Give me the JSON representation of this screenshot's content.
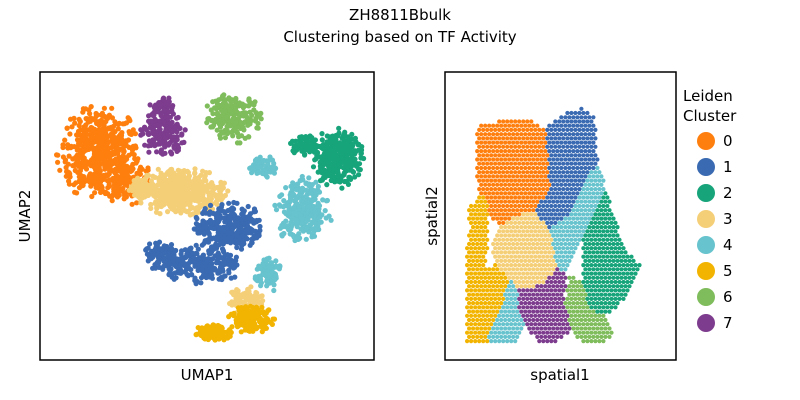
{
  "figure": {
    "title_line1": "ZH8811Bbulk",
    "title_line2": "Clustering based on TF Activity"
  },
  "legend": {
    "title_line1": "Leiden",
    "title_line2": "Cluster",
    "items": [
      {
        "label": "0",
        "color": "#ff7f0e"
      },
      {
        "label": "1",
        "color": "#3a6ab2"
      },
      {
        "label": "2",
        "color": "#17a47a"
      },
      {
        "label": "3",
        "color": "#f5cf78"
      },
      {
        "label": "4",
        "color": "#67c3cd"
      },
      {
        "label": "5",
        "color": "#f2b400"
      },
      {
        "label": "6",
        "color": "#7fbc5b"
      },
      {
        "label": "7",
        "color": "#7d3c8e"
      }
    ]
  },
  "chart_data": [
    {
      "type": "scatter",
      "xlabel": "UMAP1",
      "ylabel": "UMAP2",
      "ticks": "none",
      "grid": false,
      "xlim": [
        0,
        100
      ],
      "ylim": [
        0,
        100
      ],
      "clusters": [
        {
          "cluster": "0",
          "shape": "blob",
          "cx": 16,
          "cy": 73,
          "rx": 13,
          "ry": 17,
          "n": 520
        },
        {
          "cluster": "0",
          "shape": "blob",
          "cx": 25,
          "cy": 63,
          "rx": 8,
          "ry": 9,
          "n": 140
        },
        {
          "cluster": "7",
          "shape": "blob",
          "cx": 36,
          "cy": 80,
          "rx": 7,
          "ry": 9,
          "n": 170
        },
        {
          "cluster": "7",
          "shape": "blob",
          "cx": 36,
          "cy": 90,
          "rx": 4,
          "ry": 4,
          "n": 50
        },
        {
          "cluster": "6",
          "shape": "blob",
          "cx": 58,
          "cy": 86,
          "rx": 9,
          "ry": 9,
          "n": 200
        },
        {
          "cluster": "2",
          "shape": "blob",
          "cx": 91,
          "cy": 71,
          "rx": 8,
          "ry": 11,
          "n": 300
        },
        {
          "cluster": "2",
          "shape": "blob",
          "cx": 81,
          "cy": 76,
          "rx": 5,
          "ry": 4,
          "n": 70
        },
        {
          "cluster": "3",
          "shape": "blob",
          "cx": 42,
          "cy": 59,
          "rx": 14,
          "ry": 9,
          "n": 460
        },
        {
          "cluster": "3",
          "shape": "blob",
          "cx": 29,
          "cy": 60,
          "rx": 4,
          "ry": 5,
          "n": 60
        },
        {
          "cluster": "1",
          "shape": "blob",
          "cx": 57,
          "cy": 46,
          "rx": 11,
          "ry": 9,
          "n": 300
        },
        {
          "cluster": "1",
          "shape": "blob",
          "cx": 48,
          "cy": 32,
          "rx": 13,
          "ry": 7,
          "n": 230
        },
        {
          "cluster": "1",
          "shape": "blob",
          "cx": 36,
          "cy": 35,
          "rx": 6,
          "ry": 6,
          "n": 100
        },
        {
          "cluster": "4",
          "shape": "blob",
          "cx": 80,
          "cy": 52,
          "rx": 9,
          "ry": 12,
          "n": 280
        },
        {
          "cluster": "4",
          "shape": "blob",
          "cx": 68,
          "cy": 68,
          "rx": 5,
          "ry": 4,
          "n": 60
        },
        {
          "cluster": "4",
          "shape": "blob",
          "cx": 69,
          "cy": 29,
          "rx": 4,
          "ry": 7,
          "n": 90
        },
        {
          "cluster": "3",
          "shape": "blob",
          "cx": 62,
          "cy": 19,
          "rx": 6,
          "ry": 5,
          "n": 80
        },
        {
          "cluster": "5",
          "shape": "blob",
          "cx": 64,
          "cy": 12,
          "rx": 7,
          "ry": 5,
          "n": 160
        },
        {
          "cluster": "5",
          "shape": "blob",
          "cx": 52,
          "cy": 7,
          "rx": 6,
          "ry": 3,
          "n": 110
        }
      ]
    },
    {
      "type": "scatter",
      "xlabel": "spatial1",
      "ylabel": "spatial2",
      "ticks": "none",
      "grid": false,
      "marker": "hexagonal grid spots",
      "xlim": [
        0,
        100
      ],
      "ylim": [
        0,
        100
      ],
      "regions": [
        {
          "cluster": "5",
          "polygon": [
            [
              6,
              53
            ],
            [
              14,
              59
            ],
            [
              16,
              54
            ],
            [
              16,
              40
            ],
            [
              14,
              28
            ],
            [
              10,
              20
            ],
            [
              5,
              20
            ],
            [
              5,
              35
            ],
            [
              7,
              45
            ]
          ]
        },
        {
          "cluster": "0",
          "polygon": [
            [
              10,
              84
            ],
            [
              17,
              85
            ],
            [
              25,
              87
            ],
            [
              35,
              87
            ],
            [
              43,
              83
            ],
            [
              45,
              60
            ],
            [
              37,
              52
            ],
            [
              27,
              49
            ],
            [
              21,
              46
            ],
            [
              14,
              52
            ],
            [
              11,
              60
            ],
            [
              10,
              70
            ]
          ]
        },
        {
          "cluster": "1",
          "polygon": [
            [
              44,
              84
            ],
            [
              52,
              89
            ],
            [
              60,
              91
            ],
            [
              66,
              88
            ],
            [
              68,
              70
            ],
            [
              60,
              62
            ],
            [
              54,
              50
            ],
            [
              45,
              45
            ],
            [
              37,
              52
            ],
            [
              45,
              60
            ],
            [
              43,
              83
            ]
          ]
        },
        {
          "cluster": "3",
          "polygon": [
            [
              21,
              46
            ],
            [
              27,
              49
            ],
            [
              37,
              52
            ],
            [
              45,
              45
            ],
            [
              48,
              30
            ],
            [
              42,
              25
            ],
            [
              36,
              23
            ],
            [
              30,
              23
            ],
            [
              25,
              26
            ],
            [
              19,
              33
            ],
            [
              17,
              40
            ]
          ]
        },
        {
          "cluster": "4",
          "polygon": [
            [
              54,
              50
            ],
            [
              60,
              62
            ],
            [
              68,
              70
            ],
            [
              72,
              60
            ],
            [
              68,
              55
            ],
            [
              60,
              40
            ],
            [
              53,
              29
            ],
            [
              48,
              30
            ],
            [
              45,
              45
            ]
          ]
        },
        {
          "cluster": "2",
          "polygon": [
            [
              68,
              55
            ],
            [
              72,
              60
            ],
            [
              76,
              48
            ],
            [
              82,
              36
            ],
            [
              88,
              32
            ],
            [
              82,
              20
            ],
            [
              72,
              12
            ],
            [
              64,
              15
            ],
            [
              60,
              25
            ],
            [
              60,
              40
            ]
          ]
        },
        {
          "cluster": "6",
          "polygon": [
            [
              54,
              28
            ],
            [
              60,
              25
            ],
            [
              68,
              18
            ],
            [
              72,
              12
            ],
            [
              76,
              6
            ],
            [
              70,
              2
            ],
            [
              60,
              2
            ],
            [
              55,
              7
            ],
            [
              52,
              18
            ]
          ]
        },
        {
          "cluster": "7",
          "polygon": [
            [
              30,
              23
            ],
            [
              36,
              23
            ],
            [
              42,
              25
            ],
            [
              48,
              30
            ],
            [
              53,
              29
            ],
            [
              52,
              18
            ],
            [
              55,
              7
            ],
            [
              48,
              2
            ],
            [
              40,
              2
            ],
            [
              33,
              8
            ],
            [
              30,
              15
            ]
          ]
        },
        {
          "cluster": "5",
          "polygon": [
            [
              5,
              20
            ],
            [
              10,
              20
            ],
            [
              14,
              28
            ],
            [
              19,
              33
            ],
            [
              25,
              26
            ],
            [
              22,
              14
            ],
            [
              18,
              8
            ],
            [
              15,
              2
            ],
            [
              5,
              2
            ]
          ]
        },
        {
          "cluster": "4",
          "polygon": [
            [
              15,
              2
            ],
            [
              18,
              8
            ],
            [
              22,
              14
            ],
            [
              25,
              26
            ],
            [
              30,
              23
            ],
            [
              30,
              15
            ],
            [
              33,
              8
            ],
            [
              30,
              2
            ]
          ]
        }
      ]
    }
  ]
}
